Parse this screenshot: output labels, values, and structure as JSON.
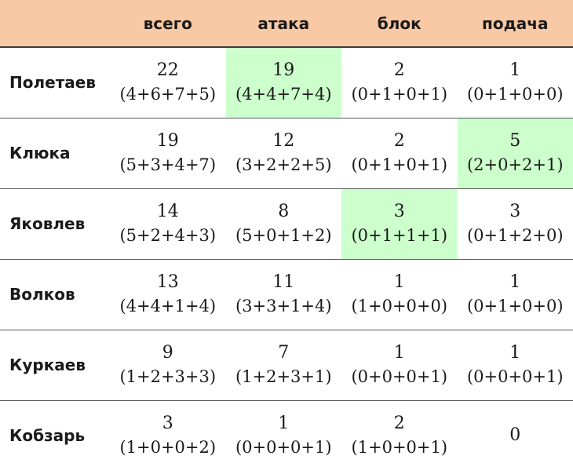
{
  "chart_data": {
    "type": "table",
    "columns": [
      "",
      "всего",
      "атака",
      "блок",
      "подача"
    ],
    "highlight_color": "#ccffcc",
    "header_color": "#f8c9a4",
    "rows": [
      {
        "name": "Полетаев",
        "cells": [
          {
            "total": "22",
            "breakdown": "(4+6+7+5)",
            "highlight": false
          },
          {
            "total": "19",
            "breakdown": "(4+4+7+4)",
            "highlight": true
          },
          {
            "total": "2",
            "breakdown": "(0+1+0+1)",
            "highlight": false
          },
          {
            "total": "1",
            "breakdown": "(0+1+0+0)",
            "highlight": false
          }
        ]
      },
      {
        "name": "Клюка",
        "cells": [
          {
            "total": "19",
            "breakdown": "(5+3+4+7)",
            "highlight": false
          },
          {
            "total": "12",
            "breakdown": "(3+2+2+5)",
            "highlight": false
          },
          {
            "total": "2",
            "breakdown": "(0+1+0+1)",
            "highlight": false
          },
          {
            "total": "5",
            "breakdown": "(2+0+2+1)",
            "highlight": true
          }
        ]
      },
      {
        "name": "Яковлев",
        "cells": [
          {
            "total": "14",
            "breakdown": "(5+2+4+3)",
            "highlight": false
          },
          {
            "total": "8",
            "breakdown": "(5+0+1+2)",
            "highlight": false
          },
          {
            "total": "3",
            "breakdown": "(0+1+1+1)",
            "highlight": true
          },
          {
            "total": "3",
            "breakdown": "(0+1+2+0)",
            "highlight": false
          }
        ]
      },
      {
        "name": "Волков",
        "cells": [
          {
            "total": "13",
            "breakdown": "(4+4+1+4)",
            "highlight": false
          },
          {
            "total": "11",
            "breakdown": "(3+3+1+4)",
            "highlight": false
          },
          {
            "total": "1",
            "breakdown": "(1+0+0+0)",
            "highlight": false
          },
          {
            "total": "1",
            "breakdown": "(0+1+0+0)",
            "highlight": false
          }
        ]
      },
      {
        "name": "Куркаев",
        "cells": [
          {
            "total": "9",
            "breakdown": "(1+2+3+3)",
            "highlight": false
          },
          {
            "total": "7",
            "breakdown": "(1+2+3+1)",
            "highlight": false
          },
          {
            "total": "1",
            "breakdown": "(0+0+0+1)",
            "highlight": false
          },
          {
            "total": "1",
            "breakdown": "(0+0+0+1)",
            "highlight": false
          }
        ]
      },
      {
        "name": "Кобзарь",
        "cells": [
          {
            "total": "3",
            "breakdown": "(1+0+0+2)",
            "highlight": false
          },
          {
            "total": "1",
            "breakdown": "(0+0+0+1)",
            "highlight": false
          },
          {
            "total": "2",
            "breakdown": "(1+0+0+1)",
            "highlight": false
          },
          {
            "total": "0",
            "breakdown": "",
            "highlight": false
          }
        ]
      }
    ]
  }
}
